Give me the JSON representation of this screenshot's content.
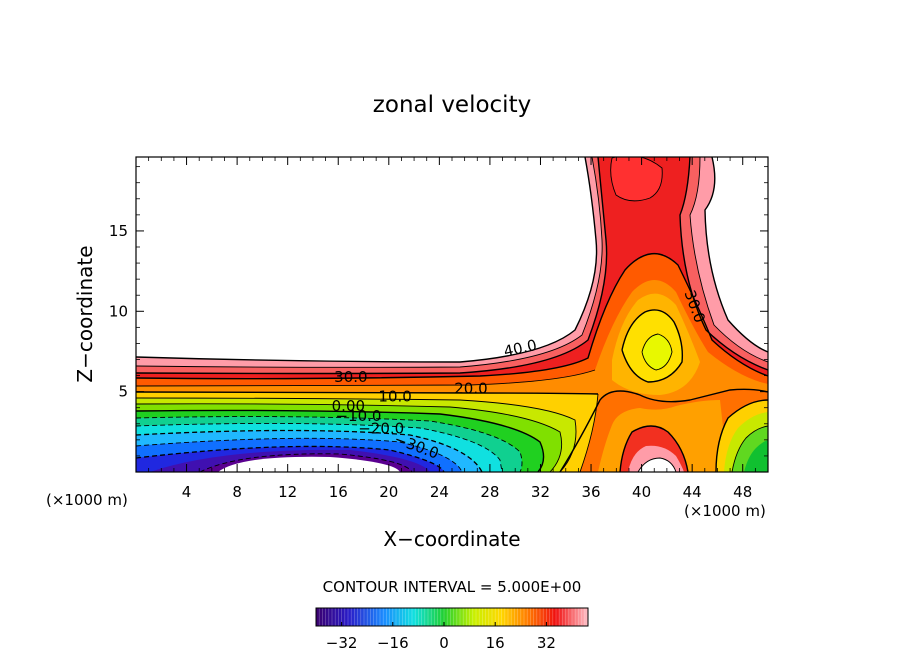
{
  "chart_data": {
    "type": "contour",
    "title": "zonal velocity",
    "xlabel": "X−coordinate",
    "ylabel": "Z−coordinate",
    "x_units_left": "(×1000 m)",
    "x_units_right": "(×1000 m)",
    "xlim": [
      0,
      50
    ],
    "ylim": [
      0,
      19.6
    ],
    "x_ticks": [
      4,
      8,
      12,
      16,
      20,
      24,
      28,
      32,
      36,
      40,
      44,
      48
    ],
    "y_ticks": [
      5,
      10,
      15
    ],
    "contour_interval_text": "CONTOUR INTERVAL = 5.000E+00",
    "colorbar": {
      "range": [
        -40,
        45
      ],
      "ticks": [
        -32,
        -16,
        0,
        16,
        32
      ],
      "tick_labels": [
        "−32",
        "−16",
        "0",
        "16",
        "32"
      ]
    },
    "contour_labels": [
      {
        "text": "40.0",
        "x": 30.4,
        "z": 7.7,
        "angle": -12
      },
      {
        "text": "30.0",
        "x": 17.0,
        "z": 5.9,
        "angle": 0
      },
      {
        "text": "20.0",
        "x": 26.5,
        "z": 5.2,
        "angle": 0
      },
      {
        "text": "10.0",
        "x": 20.5,
        "z": 4.7,
        "angle": 0
      },
      {
        "text": "0.00",
        "x": 16.8,
        "z": 4.1,
        "angle": 0
      },
      {
        "text": "−10.0",
        "x": 17.6,
        "z": 3.5,
        "angle": 0
      },
      {
        "text": "−20.0",
        "x": 19.4,
        "z": 2.7,
        "angle": 0
      },
      {
        "text": "−30.0",
        "x": 22.2,
        "z": 1.6,
        "angle": 20
      },
      {
        "text": "30.0",
        "x": 44.2,
        "z": 10.3,
        "angle": 70
      }
    ]
  }
}
